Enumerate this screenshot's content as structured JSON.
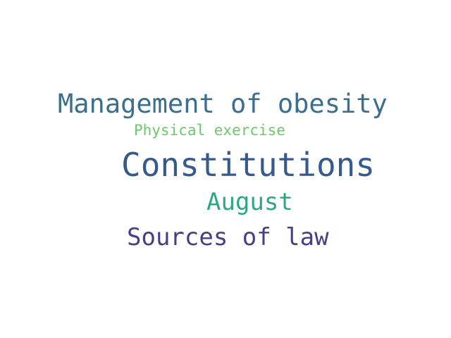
{
  "words": [
    {
      "text": "Management of obesity",
      "color": "#3b6f8f"
    },
    {
      "text": "Physical exercise",
      "color": "#6acb66"
    },
    {
      "text": "Constitutions",
      "color": "#355a8c"
    },
    {
      "text": "August",
      "color": "#2aa784"
    },
    {
      "text": "Sources of law",
      "color": "#463f85"
    }
  ]
}
